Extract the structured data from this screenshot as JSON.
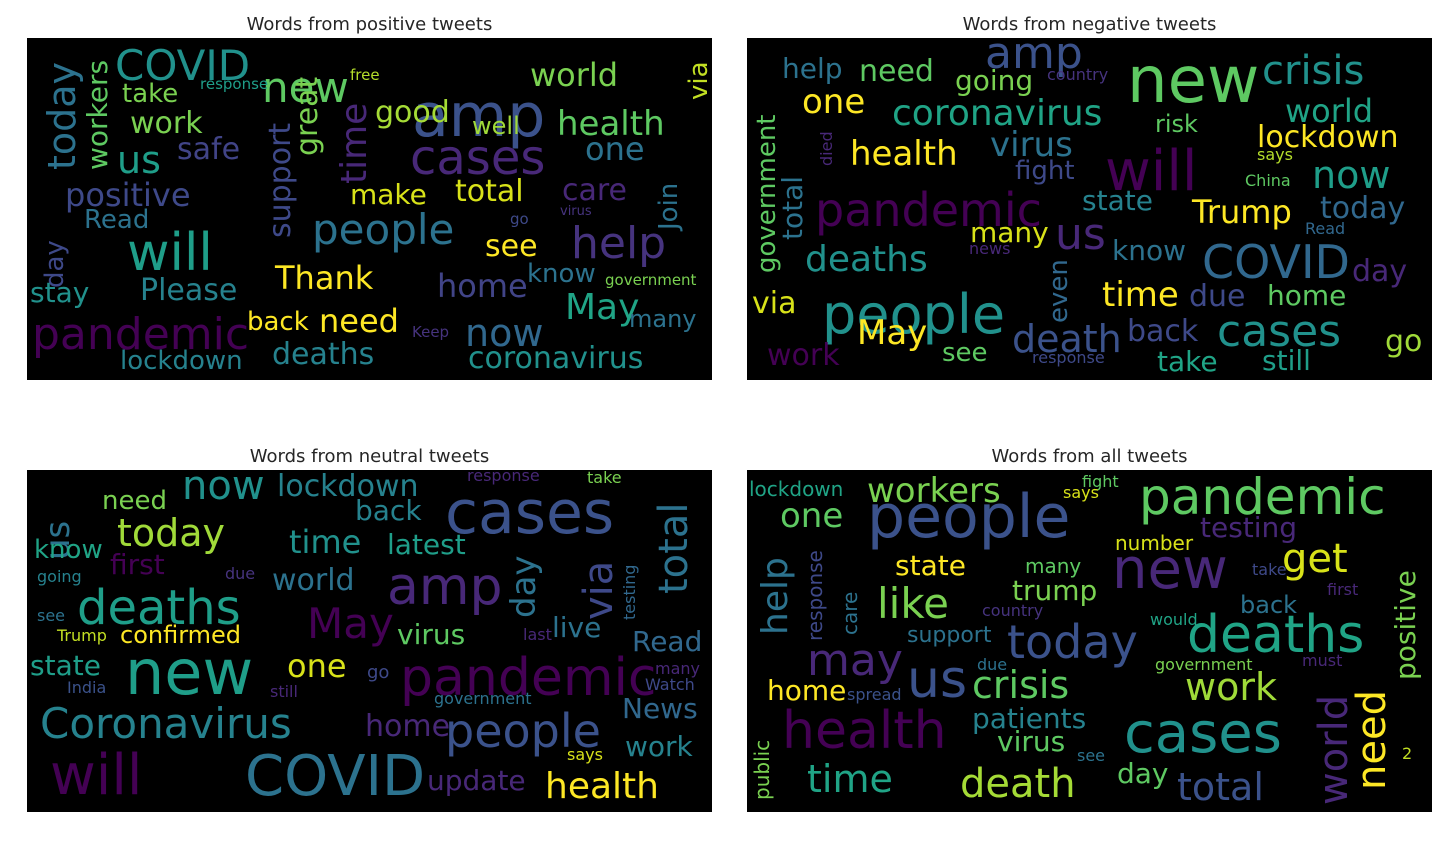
{
  "chart_data": [
    {
      "type": "wordcloud",
      "title": "Words from positive tweets",
      "background": "#000000",
      "words": [
        {
          "text": "amp",
          "color": "#3b528b"
        },
        {
          "text": "new",
          "color": "#5ec962"
        },
        {
          "text": "COVID",
          "color": "#21918c"
        },
        {
          "text": "world",
          "color": "#7ad151"
        },
        {
          "text": "via",
          "color": "#c2df23"
        },
        {
          "text": "today",
          "color": "#2c728e"
        },
        {
          "text": "workers",
          "color": "#5ec962"
        },
        {
          "text": "take",
          "color": "#7ad151"
        },
        {
          "text": "response",
          "color": "#1f9e89"
        },
        {
          "text": "free",
          "color": "#b5de2b"
        },
        {
          "text": "good",
          "color": "#a5db36"
        },
        {
          "text": "health",
          "color": "#5ec962"
        },
        {
          "text": "well",
          "color": "#a0da39"
        },
        {
          "text": "time",
          "color": "#482878"
        },
        {
          "text": "great",
          "color": "#7ad151"
        },
        {
          "text": "support",
          "color": "#3e4989"
        },
        {
          "text": "work",
          "color": "#7ad151"
        },
        {
          "text": "us",
          "color": "#1f9e89"
        },
        {
          "text": "safe",
          "color": "#414487"
        },
        {
          "text": "cases",
          "color": "#482878"
        },
        {
          "text": "one",
          "color": "#2c728e"
        },
        {
          "text": "positive",
          "color": "#3e4989"
        },
        {
          "text": "make",
          "color": "#d8e219"
        },
        {
          "text": "total",
          "color": "#d8e219"
        },
        {
          "text": "care",
          "color": "#482878"
        },
        {
          "text": "Join",
          "color": "#2c728e"
        },
        {
          "text": "Read",
          "color": "#2c728e"
        },
        {
          "text": "go",
          "color": "#3e4989"
        },
        {
          "text": "virus",
          "color": "#46337e"
        },
        {
          "text": "day",
          "color": "#3e4989"
        },
        {
          "text": "will",
          "color": "#1f9e89"
        },
        {
          "text": "people",
          "color": "#2c728e"
        },
        {
          "text": "see",
          "color": "#fde725"
        },
        {
          "text": "help",
          "color": "#46337e"
        },
        {
          "text": "stay",
          "color": "#21918c"
        },
        {
          "text": "Please",
          "color": "#26828e"
        },
        {
          "text": "Thank",
          "color": "#fde725"
        },
        {
          "text": "know",
          "color": "#2c728e"
        },
        {
          "text": "government",
          "color": "#7ad151"
        },
        {
          "text": "home",
          "color": "#414487"
        },
        {
          "text": "May",
          "color": "#20a486"
        },
        {
          "text": "many",
          "color": "#2c728e"
        },
        {
          "text": "pandemic",
          "color": "#440154"
        },
        {
          "text": "back",
          "color": "#fde725"
        },
        {
          "text": "need",
          "color": "#fde725"
        },
        {
          "text": "Keep",
          "color": "#46337e"
        },
        {
          "text": "now",
          "color": "#31688e"
        },
        {
          "text": "lockdown",
          "color": "#26828e"
        },
        {
          "text": "deaths",
          "color": "#26828e"
        },
        {
          "text": "coronavirus",
          "color": "#21918c"
        }
      ]
    },
    {
      "type": "wordcloud",
      "title": "Words from negative tweets",
      "background": "#000000",
      "words": [
        {
          "text": "new",
          "color": "#5ec962"
        },
        {
          "text": "amp",
          "color": "#3b528b"
        },
        {
          "text": "crisis",
          "color": "#21918c"
        },
        {
          "text": "help",
          "color": "#2c728e"
        },
        {
          "text": "need",
          "color": "#5ec962"
        },
        {
          "text": "going",
          "color": "#7ad151"
        },
        {
          "text": "country",
          "color": "#46337e"
        },
        {
          "text": "government",
          "color": "#5ec962"
        },
        {
          "text": "one",
          "color": "#fde725"
        },
        {
          "text": "coronavirus",
          "color": "#20a486"
        },
        {
          "text": "world",
          "color": "#20a486"
        },
        {
          "text": "risk",
          "color": "#5ec962"
        },
        {
          "text": "lockdown",
          "color": "#fde725"
        },
        {
          "text": "died",
          "color": "#482878"
        },
        {
          "text": "health",
          "color": "#fde725"
        },
        {
          "text": "virus",
          "color": "#2c728e"
        },
        {
          "text": "will",
          "color": "#440154"
        },
        {
          "text": "says",
          "color": "#b5de2b"
        },
        {
          "text": "now",
          "color": "#1f9e89"
        },
        {
          "text": "total",
          "color": "#2c728e"
        },
        {
          "text": "fight",
          "color": "#3e4989"
        },
        {
          "text": "China",
          "color": "#5ec962"
        },
        {
          "text": "pandemic",
          "color": "#440154"
        },
        {
          "text": "state",
          "color": "#26828e"
        },
        {
          "text": "Trump",
          "color": "#fde725"
        },
        {
          "text": "today",
          "color": "#31688e"
        },
        {
          "text": "Read",
          "color": "#31688e"
        },
        {
          "text": "us",
          "color": "#482878"
        },
        {
          "text": "many",
          "color": "#d8e219"
        },
        {
          "text": "news",
          "color": "#482878"
        },
        {
          "text": "deaths",
          "color": "#21918c"
        },
        {
          "text": "know",
          "color": "#2c728e"
        },
        {
          "text": "COVID",
          "color": "#31688e"
        },
        {
          "text": "day",
          "color": "#482878"
        },
        {
          "text": "even",
          "color": "#31688e"
        },
        {
          "text": "people",
          "color": "#21918c"
        },
        {
          "text": "time",
          "color": "#fde725"
        },
        {
          "text": "due",
          "color": "#3e4989"
        },
        {
          "text": "home",
          "color": "#5ec962"
        },
        {
          "text": "via",
          "color": "#d8e219"
        },
        {
          "text": "May",
          "color": "#fde725"
        },
        {
          "text": "death",
          "color": "#3b528b"
        },
        {
          "text": "back",
          "color": "#3e4989"
        },
        {
          "text": "cases",
          "color": "#21918c"
        },
        {
          "text": "go",
          "color": "#a0da39"
        },
        {
          "text": "work",
          "color": "#440154"
        },
        {
          "text": "see",
          "color": "#5ec962"
        },
        {
          "text": "response",
          "color": "#3e4989"
        },
        {
          "text": "take",
          "color": "#20a486"
        },
        {
          "text": "still",
          "color": "#1f9e89"
        }
      ]
    },
    {
      "type": "wordcloud",
      "title": "Words from neutral tweets",
      "background": "#000000",
      "words": [
        {
          "text": "us",
          "color": "#2c728e"
        },
        {
          "text": "need",
          "color": "#7ad151"
        },
        {
          "text": "now",
          "color": "#21918c"
        },
        {
          "text": "lockdown",
          "color": "#26828e"
        },
        {
          "text": "response",
          "color": "#482878"
        },
        {
          "text": "take",
          "color": "#7ad151"
        },
        {
          "text": "cases",
          "color": "#3b528b"
        },
        {
          "text": "total",
          "color": "#2c728e"
        },
        {
          "text": "today",
          "color": "#a0da39"
        },
        {
          "text": "back",
          "color": "#26828e"
        },
        {
          "text": "know",
          "color": "#20a486"
        },
        {
          "text": "time",
          "color": "#21918c"
        },
        {
          "text": "latest",
          "color": "#1f9e89"
        },
        {
          "text": "first",
          "color": "#440154"
        },
        {
          "text": "due",
          "color": "#46337e"
        },
        {
          "text": "testing",
          "color": "#31688e"
        },
        {
          "text": "going",
          "color": "#26828e"
        },
        {
          "text": "world",
          "color": "#2c728e"
        },
        {
          "text": "day",
          "color": "#2c728e"
        },
        {
          "text": "via",
          "color": "#3e4989"
        },
        {
          "text": "amp",
          "color": "#482878"
        },
        {
          "text": "deaths",
          "color": "#1f9e89"
        },
        {
          "text": "see",
          "color": "#2c728e"
        },
        {
          "text": "May",
          "color": "#440154"
        },
        {
          "text": "Trump",
          "color": "#c2df23"
        },
        {
          "text": "confirmed",
          "color": "#fde725"
        },
        {
          "text": "virus",
          "color": "#5ec962"
        },
        {
          "text": "last",
          "color": "#482878"
        },
        {
          "text": "live",
          "color": "#2c728e"
        },
        {
          "text": "Read",
          "color": "#31688e"
        },
        {
          "text": "state",
          "color": "#1f9e89"
        },
        {
          "text": "new",
          "color": "#1f9e89"
        },
        {
          "text": "one",
          "color": "#d8e219"
        },
        {
          "text": "go",
          "color": "#3e4989"
        },
        {
          "text": "pandemic",
          "color": "#440154"
        },
        {
          "text": "many",
          "color": "#482878"
        },
        {
          "text": "India",
          "color": "#3b528b"
        },
        {
          "text": "still",
          "color": "#482878"
        },
        {
          "text": "Watch",
          "color": "#3e4989"
        },
        {
          "text": "government",
          "color": "#2c728e"
        },
        {
          "text": "Coronavirus",
          "color": "#26828e"
        },
        {
          "text": "home",
          "color": "#482878"
        },
        {
          "text": "people",
          "color": "#3b528b"
        },
        {
          "text": "News",
          "color": "#31688e"
        },
        {
          "text": "says",
          "color": "#d8e219"
        },
        {
          "text": "work",
          "color": "#26828e"
        },
        {
          "text": "will",
          "color": "#440154"
        },
        {
          "text": "COVID",
          "color": "#2c728e"
        },
        {
          "text": "update",
          "color": "#482878"
        },
        {
          "text": "health",
          "color": "#fde725"
        }
      ]
    },
    {
      "type": "wordcloud",
      "title": "Words from all tweets",
      "background": "#000000",
      "words": [
        {
          "text": "lockdown",
          "color": "#20a486"
        },
        {
          "text": "workers",
          "color": "#7ad151"
        },
        {
          "text": "fight",
          "color": "#5ec962"
        },
        {
          "text": "says",
          "color": "#d8e219"
        },
        {
          "text": "pandemic",
          "color": "#5ec962"
        },
        {
          "text": "one",
          "color": "#5ec962"
        },
        {
          "text": "people",
          "color": "#3b528b"
        },
        {
          "text": "testing",
          "color": "#482878"
        },
        {
          "text": "number",
          "color": "#d8e219"
        },
        {
          "text": "help",
          "color": "#2c728e"
        },
        {
          "text": "response",
          "color": "#3e4989"
        },
        {
          "text": "many",
          "color": "#5ec962"
        },
        {
          "text": "new",
          "color": "#482878"
        },
        {
          "text": "get",
          "color": "#d8e219"
        },
        {
          "text": "positive",
          "color": "#7ad151"
        },
        {
          "text": "state",
          "color": "#fde725"
        },
        {
          "text": "take",
          "color": "#3e4989"
        },
        {
          "text": "first",
          "color": "#482878"
        },
        {
          "text": "care",
          "color": "#2c728e"
        },
        {
          "text": "trump",
          "color": "#7ad151"
        },
        {
          "text": "like",
          "color": "#7ad151"
        },
        {
          "text": "country",
          "color": "#46337e"
        },
        {
          "text": "back",
          "color": "#2c728e"
        },
        {
          "text": "support",
          "color": "#2c728e"
        },
        {
          "text": "would",
          "color": "#20a486"
        },
        {
          "text": "today",
          "color": "#3b528b"
        },
        {
          "text": "deaths",
          "color": "#20a486"
        },
        {
          "text": "may",
          "color": "#482878"
        },
        {
          "text": "due",
          "color": "#2c728e"
        },
        {
          "text": "government",
          "color": "#7ad151"
        },
        {
          "text": "must",
          "color": "#482878"
        },
        {
          "text": "us",
          "color": "#3b528b"
        },
        {
          "text": "crisis",
          "color": "#5ec962"
        },
        {
          "text": "home",
          "color": "#fde725"
        },
        {
          "text": "spread",
          "color": "#3b528b"
        },
        {
          "text": "work",
          "color": "#a0da39"
        },
        {
          "text": "patients",
          "color": "#26828e"
        },
        {
          "text": "world",
          "color": "#482878"
        },
        {
          "text": "need",
          "color": "#fde725"
        },
        {
          "text": "2",
          "color": "#c2df23"
        },
        {
          "text": "health",
          "color": "#440154"
        },
        {
          "text": "virus",
          "color": "#5ec962"
        },
        {
          "text": "cases",
          "color": "#21918c"
        },
        {
          "text": "see",
          "color": "#2c728e"
        },
        {
          "text": "public",
          "color": "#7ad151"
        },
        {
          "text": "time",
          "color": "#20a486"
        },
        {
          "text": "death",
          "color": "#a5db36"
        },
        {
          "text": "day",
          "color": "#5ec962"
        },
        {
          "text": "total",
          "color": "#3b528b"
        }
      ]
    }
  ]
}
